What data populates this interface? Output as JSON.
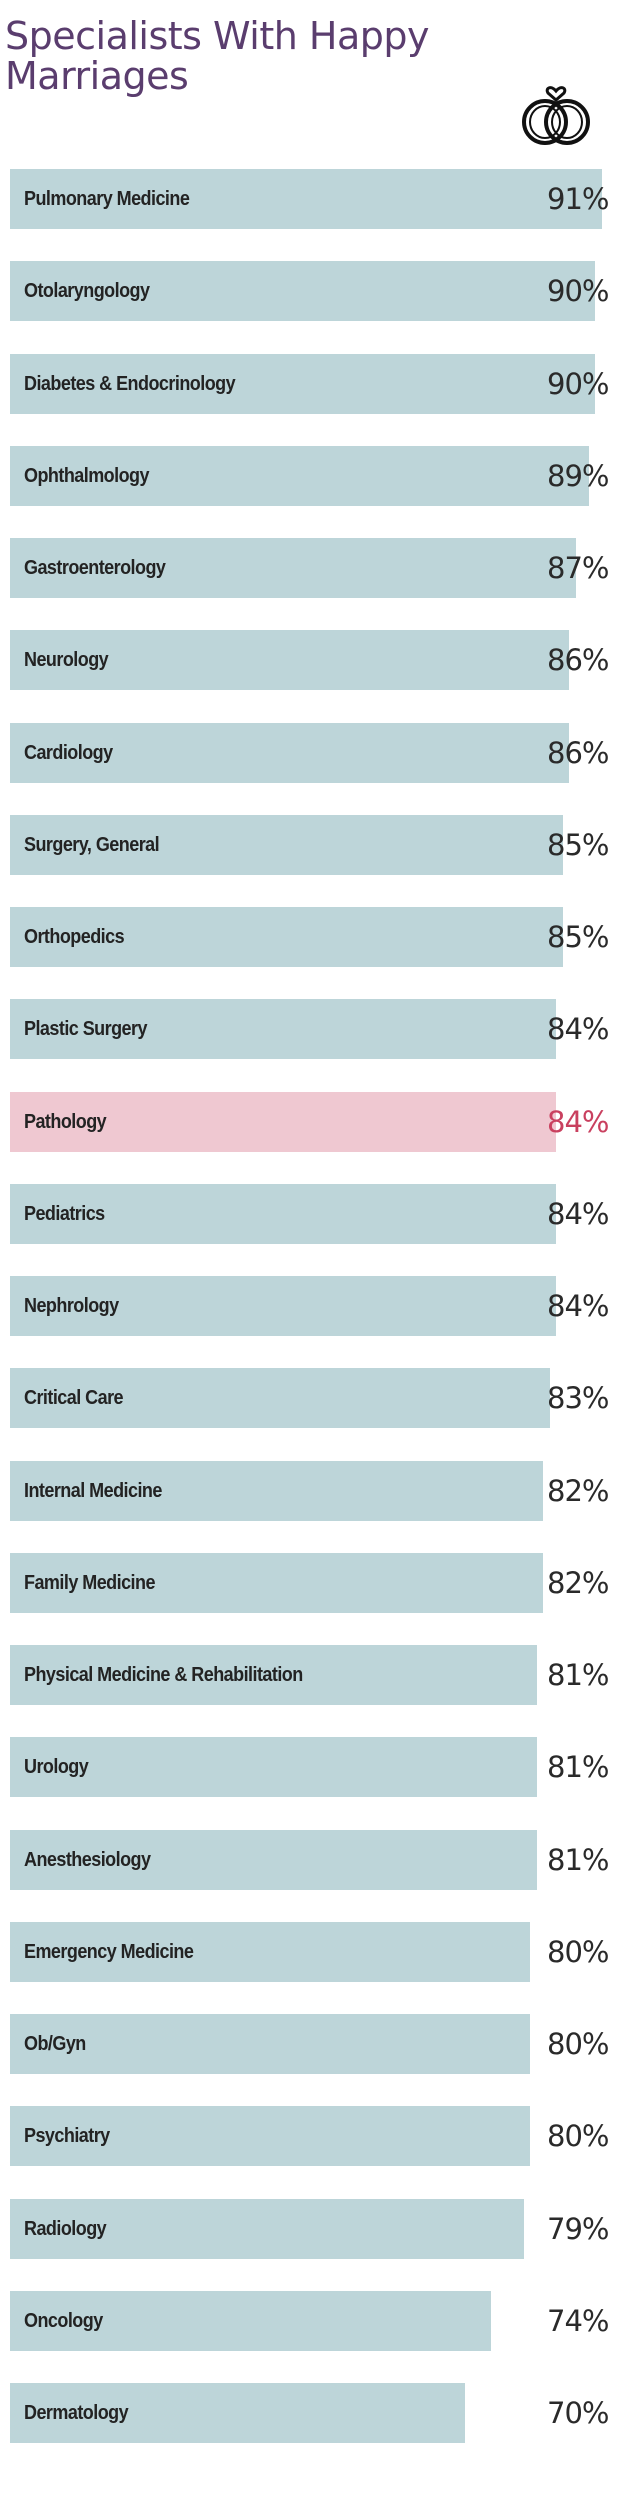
{
  "title": "Specialists With Happy Marriages",
  "icon": "wedding-rings-heart-icon",
  "colors": {
    "bar": "#bdd5d9",
    "highlight_bar": "#efc8d1",
    "highlight_text": "#c9405f",
    "title": "#5a3d6e"
  },
  "chart_data": {
    "type": "bar",
    "orientation": "horizontal",
    "title": "Specialists With Happy Marriages",
    "xlim": [
      0,
      100
    ],
    "grid": false,
    "highlight": "Pathology",
    "categories": [
      "Pulmonary Medicine",
      "Otolaryngology",
      "Diabetes & Endocrinology",
      "Ophthalmology",
      "Gastroenterology",
      "Neurology",
      "Cardiology",
      "Surgery, General",
      "Orthopedics",
      "Plastic Surgery",
      "Pathology",
      "Pediatrics",
      "Nephrology",
      "Critical Care",
      "Internal Medicine",
      "Family Medicine",
      "Physical Medicine & Rehabilitation",
      "Urology",
      "Anesthesiology",
      "Emergency Medicine",
      "Ob/Gyn",
      "Psychiatry",
      "Radiology",
      "Oncology",
      "Dermatology"
    ],
    "values": [
      91,
      90,
      90,
      89,
      87,
      86,
      86,
      85,
      85,
      84,
      84,
      84,
      84,
      83,
      82,
      82,
      81,
      81,
      81,
      80,
      80,
      80,
      79,
      74,
      70
    ],
    "labels": [
      "91%",
      "90%",
      "90%",
      "89%",
      "87%",
      "86%",
      "86%",
      "85%",
      "85%",
      "84%",
      "84%",
      "84%",
      "84%",
      "83%",
      "82%",
      "82%",
      "81%",
      "81%",
      "81%",
      "80%",
      "80%",
      "80%",
      "79%",
      "74%",
      "70%"
    ]
  }
}
